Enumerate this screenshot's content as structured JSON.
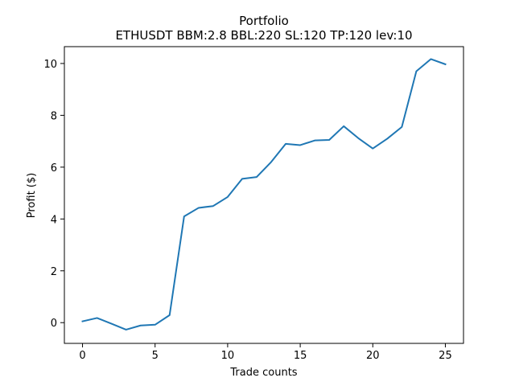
{
  "chart_data": {
    "type": "line",
    "title": "Portfolio",
    "subtitle": "ETHUSDT BBM:2.8 BBL:220 SL:120 TP:120 lev:10",
    "xlabel": "Trade counts",
    "ylabel": "Profit ($)",
    "xlim": [
      -1.25,
      26.25
    ],
    "ylim": [
      -0.8,
      10.65
    ],
    "xticks": [
      0,
      5,
      10,
      15,
      20,
      25
    ],
    "yticks": [
      0,
      2,
      4,
      6,
      8,
      10
    ],
    "grid": false,
    "legend": "none",
    "series": [
      {
        "color": "#1f77b4",
        "x": [
          0,
          1,
          2,
          3,
          4,
          5,
          6,
          7,
          8,
          9,
          10,
          11,
          12,
          13,
          14,
          15,
          16,
          17,
          18,
          19,
          20,
          21,
          22,
          23,
          24,
          25
        ],
        "y": [
          0.05,
          0.18,
          -0.04,
          -0.27,
          -0.11,
          -0.08,
          0.29,
          4.1,
          4.43,
          4.5,
          4.85,
          5.55,
          5.62,
          6.2,
          6.9,
          6.85,
          7.03,
          7.05,
          7.58,
          7.12,
          6.72,
          7.1,
          7.55,
          9.7,
          10.17,
          9.97
        ]
      }
    ]
  }
}
